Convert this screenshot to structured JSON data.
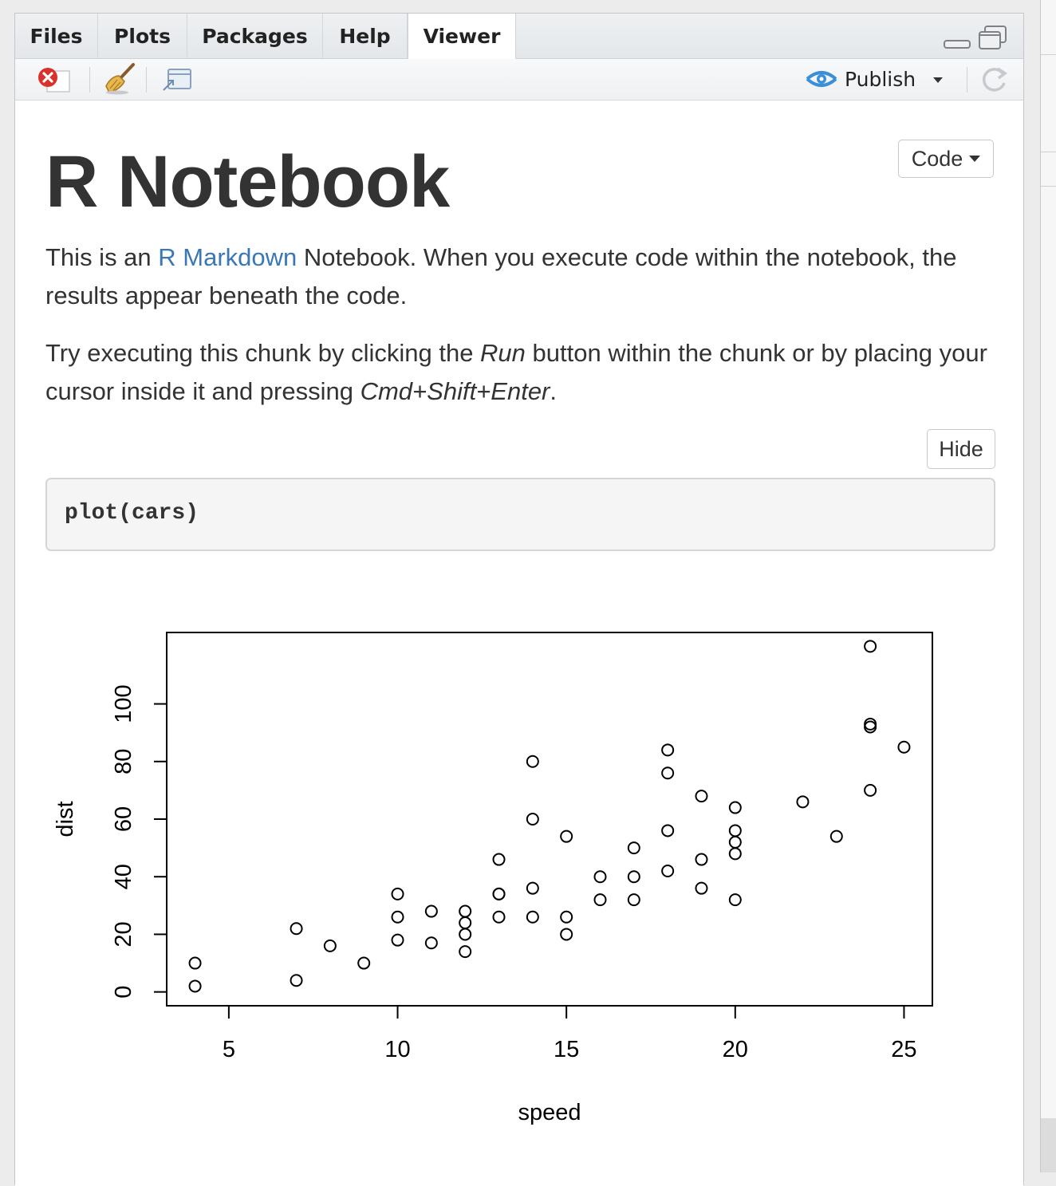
{
  "tabs": [
    "Files",
    "Plots",
    "Packages",
    "Help",
    "Viewer"
  ],
  "active_tab": "Viewer",
  "toolbar": {
    "publish_label": "Publish"
  },
  "document": {
    "title": "R Notebook",
    "code_menu_label": "Code",
    "intro_prefix": "This is an ",
    "intro_link": "R Markdown",
    "intro_rest": " Notebook. When you execute code within the notebook, the results appear beneath the code.",
    "try_1": "Try executing this chunk by clicking the ",
    "try_run": "Run",
    "try_2": " button within the chunk or by placing your cursor inside it and pressing ",
    "try_keys": "Cmd+Shift+Enter",
    "try_3": ".",
    "hide_label": "Hide",
    "code": "plot(cars)"
  },
  "chart_data": {
    "type": "scatter",
    "title": "",
    "xlabel": "speed",
    "ylabel": "dist",
    "xlim": [
      3.16,
      25.84
    ],
    "ylim": [
      -4.8,
      124.8
    ],
    "xticks": [
      5,
      10,
      15,
      20,
      25
    ],
    "yticks": [
      0,
      20,
      40,
      60,
      80,
      100
    ],
    "grid": false,
    "marker": "open-circle",
    "points": [
      [
        4,
        2
      ],
      [
        4,
        10
      ],
      [
        7,
        4
      ],
      [
        7,
        22
      ],
      [
        8,
        16
      ],
      [
        9,
        10
      ],
      [
        10,
        18
      ],
      [
        10,
        26
      ],
      [
        10,
        34
      ],
      [
        11,
        17
      ],
      [
        11,
        28
      ],
      [
        12,
        14
      ],
      [
        12,
        20
      ],
      [
        12,
        24
      ],
      [
        12,
        28
      ],
      [
        13,
        26
      ],
      [
        13,
        34
      ],
      [
        13,
        34
      ],
      [
        13,
        46
      ],
      [
        14,
        26
      ],
      [
        14,
        36
      ],
      [
        14,
        60
      ],
      [
        14,
        80
      ],
      [
        15,
        20
      ],
      [
        15,
        26
      ],
      [
        15,
        54
      ],
      [
        16,
        32
      ],
      [
        16,
        40
      ],
      [
        17,
        32
      ],
      [
        17,
        40
      ],
      [
        17,
        50
      ],
      [
        18,
        42
      ],
      [
        18,
        56
      ],
      [
        18,
        76
      ],
      [
        18,
        84
      ],
      [
        19,
        36
      ],
      [
        19,
        46
      ],
      [
        19,
        68
      ],
      [
        20,
        32
      ],
      [
        20,
        48
      ],
      [
        20,
        52
      ],
      [
        20,
        56
      ],
      [
        20,
        64
      ],
      [
        22,
        66
      ],
      [
        23,
        54
      ],
      [
        24,
        70
      ],
      [
        24,
        92
      ],
      [
        24,
        93
      ],
      [
        24,
        120
      ],
      [
        25,
        85
      ]
    ]
  }
}
